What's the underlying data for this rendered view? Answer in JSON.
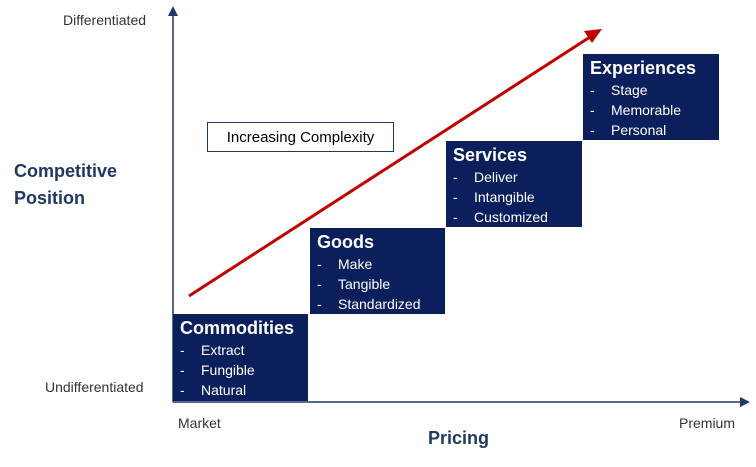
{
  "y_axis": {
    "title_line1": "Competitive",
    "title_line2": "Position",
    "top_label": "Differentiated",
    "bottom_label": "Undifferentiated"
  },
  "x_axis": {
    "title": "Pricing",
    "left_label": "Market",
    "right_label": "Premium"
  },
  "arrow_label": "Increasing Complexity",
  "stages": [
    {
      "title": "Commodities",
      "items": [
        "Extract",
        "Fungible",
        "Natural"
      ]
    },
    {
      "title": "Goods",
      "items": [
        "Make",
        "Tangible",
        "Standardized"
      ]
    },
    {
      "title": "Services",
      "items": [
        "Deliver",
        "Intangible",
        "Customized"
      ]
    },
    {
      "title": "Experiences",
      "items": [
        "Stage",
        "Memorable",
        "Personal"
      ]
    }
  ],
  "bullet": "-",
  "colors": {
    "box_fill": "#0b1f5c",
    "arrow": "#c00000",
    "axis": "#1f3864",
    "title_text": "#1f3864"
  }
}
